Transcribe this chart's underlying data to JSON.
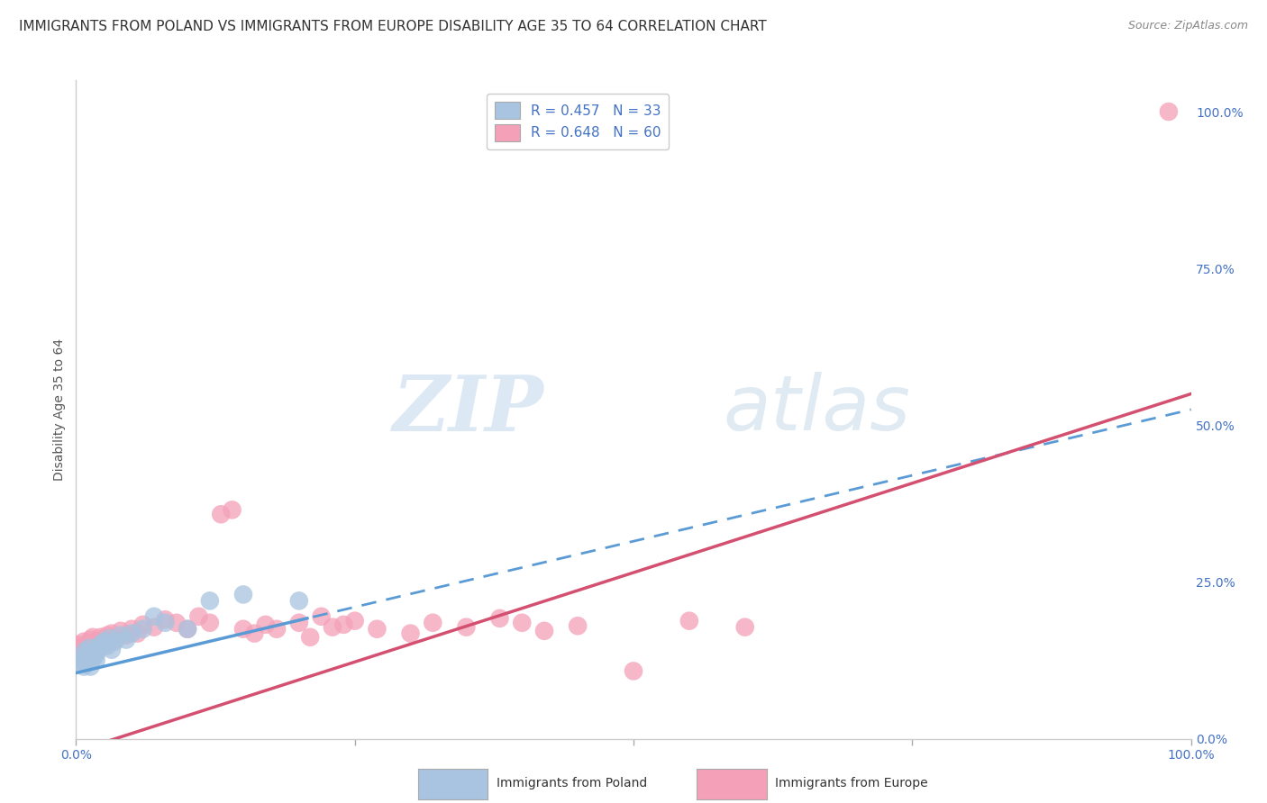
{
  "title": "IMMIGRANTS FROM POLAND VS IMMIGRANTS FROM EUROPE DISABILITY AGE 35 TO 64 CORRELATION CHART",
  "source": "Source: ZipAtlas.com",
  "ylabel": "Disability Age 35 to 64",
  "xlim": [
    0.0,
    1.0
  ],
  "ylim": [
    0.0,
    1.05
  ],
  "ytick_vals_right": [
    0.0,
    0.25,
    0.5,
    0.75,
    1.0
  ],
  "ytick_labels_right": [
    "0.0%",
    "25.0%",
    "50.0%",
    "75.0%",
    "100.0%"
  ],
  "xtick_vals": [
    0.0,
    1.0
  ],
  "xtick_labels": [
    "0.0%",
    "100.0%"
  ],
  "legend_label_1": "R = 0.457   N = 33",
  "legend_label_2": "R = 0.648   N = 60",
  "bottom_legend_1": "Immigrants from Poland",
  "bottom_legend_2": "Immigrants from Europe",
  "poland_scatter_color": "#a8c4e0",
  "poland_line_color": "#5b9bd5",
  "europe_scatter_color": "#f4a0b8",
  "europe_line_color": "#d45070",
  "grid_color": "#dddddd",
  "background_color": "#ffffff",
  "watermark_zip": "ZIP",
  "watermark_atlas": "atlas",
  "title_fontsize": 11,
  "source_fontsize": 9,
  "axis_label_fontsize": 10,
  "tick_fontsize": 10,
  "legend_fontsize": 11,
  "poland_scatter_x": [
    0.003,
    0.005,
    0.006,
    0.007,
    0.008,
    0.009,
    0.01,
    0.011,
    0.012,
    0.013,
    0.014,
    0.015,
    0.016,
    0.017,
    0.018,
    0.019,
    0.02,
    0.022,
    0.025,
    0.028,
    0.03,
    0.032,
    0.035,
    0.04,
    0.045,
    0.05,
    0.06,
    0.07,
    0.08,
    0.1,
    0.12,
    0.15,
    0.2
  ],
  "poland_scatter_y": [
    0.12,
    0.13,
    0.125,
    0.115,
    0.14,
    0.12,
    0.13,
    0.125,
    0.145,
    0.115,
    0.135,
    0.128,
    0.14,
    0.132,
    0.125,
    0.138,
    0.145,
    0.15,
    0.155,
    0.148,
    0.16,
    0.142,
    0.155,
    0.165,
    0.158,
    0.168,
    0.175,
    0.195,
    0.185,
    0.175,
    0.22,
    0.23,
    0.22
  ],
  "europe_scatter_x": [
    0.002,
    0.003,
    0.004,
    0.005,
    0.006,
    0.007,
    0.008,
    0.009,
    0.01,
    0.011,
    0.012,
    0.013,
    0.014,
    0.015,
    0.016,
    0.017,
    0.018,
    0.019,
    0.02,
    0.022,
    0.025,
    0.028,
    0.03,
    0.032,
    0.035,
    0.04,
    0.045,
    0.05,
    0.055,
    0.06,
    0.07,
    0.08,
    0.09,
    0.1,
    0.11,
    0.12,
    0.13,
    0.14,
    0.15,
    0.16,
    0.17,
    0.18,
    0.2,
    0.21,
    0.22,
    0.23,
    0.24,
    0.25,
    0.27,
    0.3,
    0.32,
    0.35,
    0.38,
    0.4,
    0.42,
    0.45,
    0.5,
    0.55,
    0.6,
    0.98
  ],
  "europe_scatter_y": [
    0.15,
    0.145,
    0.13,
    0.14,
    0.125,
    0.155,
    0.135,
    0.148,
    0.138,
    0.152,
    0.128,
    0.158,
    0.142,
    0.162,
    0.135,
    0.148,
    0.155,
    0.145,
    0.152,
    0.162,
    0.148,
    0.165,
    0.155,
    0.168,
    0.158,
    0.172,
    0.165,
    0.175,
    0.168,
    0.182,
    0.178,
    0.19,
    0.185,
    0.175,
    0.195,
    0.185,
    0.358,
    0.365,
    0.175,
    0.168,
    0.182,
    0.175,
    0.185,
    0.162,
    0.195,
    0.178,
    0.182,
    0.188,
    0.175,
    0.168,
    0.185,
    0.178,
    0.192,
    0.185,
    0.172,
    0.18,
    0.108,
    0.188,
    0.178,
    1.0
  ],
  "poland_line_intercept": 0.105,
  "poland_line_slope": 0.42,
  "europe_line_intercept": -0.02,
  "europe_line_slope": 0.57
}
